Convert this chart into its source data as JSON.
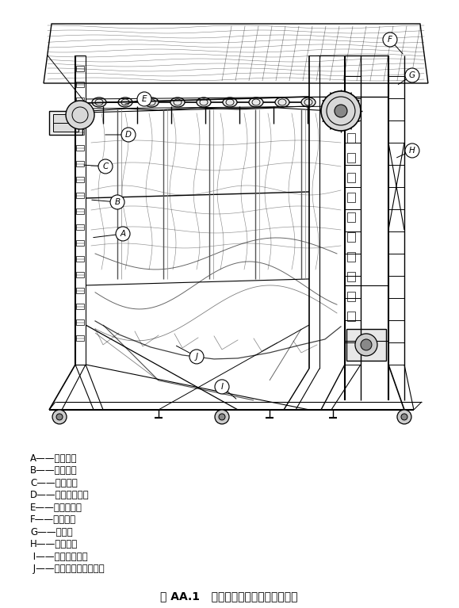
{
  "figure_caption": "图 AA.1   外壳材料的机械强度试验装置",
  "labels": [
    {
      "letter": "A",
      "text": "A——传动链；"
    },
    {
      "letter": "B",
      "text": "B——夹紧杆；"
    },
    {
      "letter": "C",
      "text": "C——传动链；"
    },
    {
      "letter": "D",
      "text": "D——自调节轴承；"
    },
    {
      "letter": "E",
      "text": "E——锁紧围住；"
    },
    {
      "letter": "F",
      "text": "F——围住臂；"
    },
    {
      "letter": "G",
      "text": "G——齿轮；"
    },
    {
      "letter": "H",
      "text": "H——幾引杆；"
    },
    {
      "letter": "I",
      "text": " I——方形截面棒；"
    },
    {
      "letter": "J",
      "text": " J——试验中的外壳材料。"
    }
  ],
  "bg_color": "#ffffff",
  "label_fontsize": 8.5,
  "caption_fontsize": 10
}
